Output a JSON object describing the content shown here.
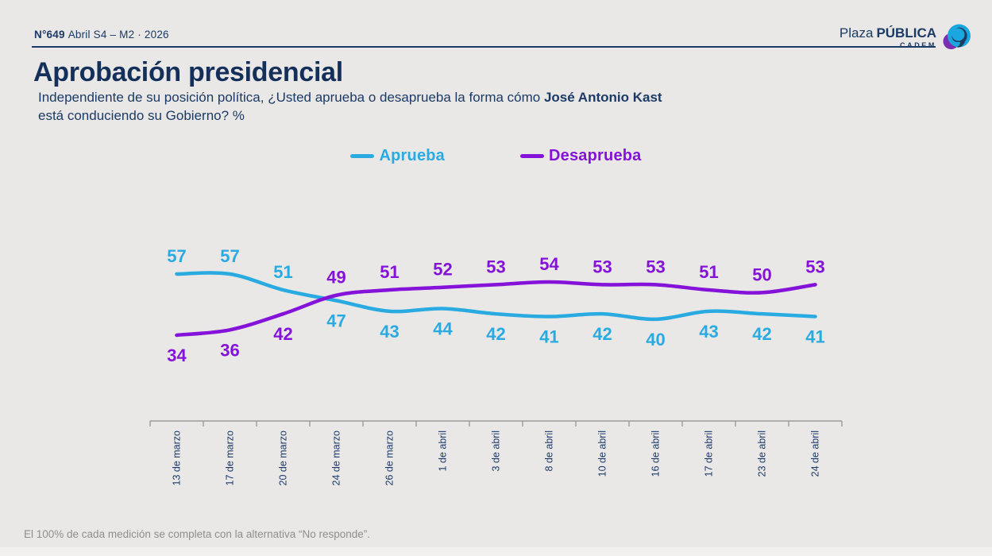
{
  "page": {
    "background": "#e9e8e6",
    "navy": "#1b3a66"
  },
  "header": {
    "edition_number": "N°649",
    "edition_period": "Abril S4 – M2 · 2026",
    "logo": {
      "plaza": "Plaza",
      "publica": "PÚBLICA",
      "cadem": "CADEM"
    }
  },
  "title": "Aprobación presidencial",
  "subtitle": {
    "lead": "Independiente de su posición política, ¿Usted aprueba o desaprueba la forma cómo ",
    "emphasis": "José Antonio Kast",
    "line2": "está conduciendo su Gobierno? %"
  },
  "chart_data": {
    "type": "line",
    "categories": [
      "13 de marzo",
      "17 de marzo",
      "20 de marzo",
      "24 de marzo",
      "26 de marzo",
      "1 de abril",
      "3 de abril",
      "8 de abril",
      "10 de abril",
      "16 de abril",
      "17 de abril",
      "23 de abril",
      "24 de abril"
    ],
    "series": [
      {
        "name": "Aprueba",
        "color": "#29abe2",
        "values": [
          57,
          57,
          51,
          47,
          43,
          44,
          42,
          41,
          42,
          40,
          43,
          42,
          41
        ]
      },
      {
        "name": "Desaprueba",
        "color": "#8412d9",
        "values": [
          34,
          36,
          42,
          49,
          51,
          52,
          53,
          54,
          53,
          53,
          51,
          50,
          53
        ]
      }
    ],
    "title": "Aprobación presidencial",
    "xlabel": "",
    "ylabel": "",
    "ylim": [
      30,
      60
    ],
    "grid": false,
    "legend_position": "top-center",
    "data_labels": true,
    "axis_color": "#9b9b9b",
    "tick_label_color": "#1c3a6b"
  },
  "footer": "El 100% de cada medición se completa con la alternativa “No responde”."
}
